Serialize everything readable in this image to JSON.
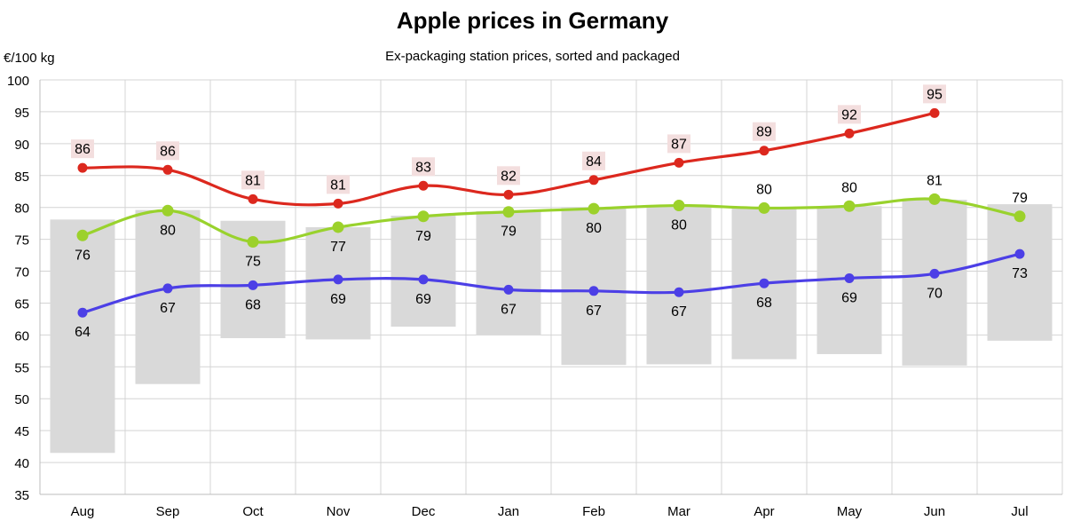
{
  "chart_data": {
    "type": "line",
    "title": "Apple prices in Germany",
    "subtitle": "Ex-packaging station prices, sorted and packaged",
    "ylabel": "€/100 kg",
    "xlabel": "",
    "ylim": [
      35,
      100
    ],
    "yticks": [
      35,
      40,
      45,
      50,
      55,
      60,
      65,
      70,
      75,
      80,
      85,
      90,
      95,
      100
    ],
    "grid": true,
    "categories": [
      "Aug",
      "Sep",
      "Oct",
      "Nov",
      "Dec",
      "Jan",
      "Feb",
      "Mar",
      "Apr",
      "May",
      "Jun",
      "Jul"
    ],
    "range_bars": {
      "color": "#d9d9d9",
      "low": [
        41.5,
        52.3,
        59.5,
        59.3,
        61.3,
        60.0,
        55.3,
        55.4,
        56.2,
        57.0,
        55.2,
        59.1
      ],
      "high": [
        78.1,
        79.6,
        77.9,
        76.9,
        78.7,
        79.4,
        79.9,
        80.0,
        80.1,
        80.2,
        81.2,
        80.5
      ]
    },
    "series": [
      {
        "color": "#dc281e",
        "marker": "#dc281e",
        "label_position": "above",
        "label_background": "#f3dede",
        "values": [
          86.2,
          85.9,
          81.3,
          80.6,
          83.4,
          82.0,
          84.3,
          87.0,
          88.9,
          91.6,
          94.8,
          null
        ],
        "labels": [
          "86",
          "86",
          "81",
          "81",
          "83",
          "82",
          "84",
          "87",
          "89",
          "92",
          "95",
          ""
        ]
      },
      {
        "color": "#99d22d",
        "marker": "#9cd12b",
        "label_position": "mixed",
        "values": [
          75.6,
          79.5,
          74.6,
          76.9,
          78.6,
          79.3,
          79.8,
          80.3,
          79.9,
          80.2,
          81.3,
          78.6
        ],
        "labels": [
          "76",
          "80",
          "75",
          "77",
          "79",
          "79",
          "80",
          "80",
          "80",
          "80",
          "81",
          "79"
        ],
        "label_above": [
          false,
          false,
          false,
          false,
          false,
          false,
          false,
          false,
          true,
          true,
          true,
          true
        ]
      },
      {
        "color": "#4c3fe6",
        "marker": "#4c3fe6",
        "label_position": "below",
        "values": [
          63.5,
          67.3,
          67.8,
          68.7,
          68.7,
          67.1,
          66.9,
          66.7,
          68.1,
          68.9,
          69.6,
          72.7
        ],
        "labels": [
          "64",
          "67",
          "68",
          "69",
          "69",
          "67",
          "67",
          "67",
          "68",
          "69",
          "70",
          "73"
        ]
      }
    ]
  }
}
